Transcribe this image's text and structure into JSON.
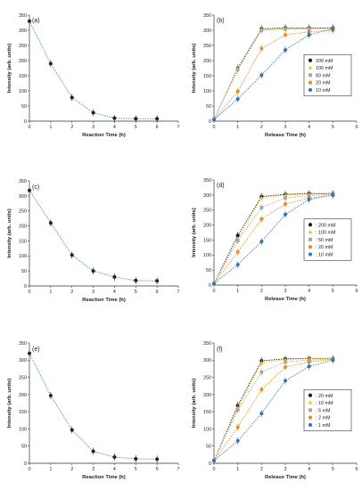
{
  "chart_data": [
    {
      "panel": "(a)",
      "type": "scatter",
      "style": "dotted-line",
      "xlabel": "Reaction Time (h)",
      "ylabel": "Intensity (arb. units)",
      "xlim": [
        0,
        7
      ],
      "ylim": [
        0,
        350
      ],
      "xticks": [
        "0",
        "1",
        "2",
        "3",
        "4",
        "5",
        "6",
        "7"
      ],
      "yticks": [
        "0",
        "50",
        "100",
        "150",
        "200",
        "250",
        "300",
        "350"
      ],
      "legend": null,
      "series": [
        {
          "color": "#3d84c6",
          "marker_color": "#222222",
          "x": [
            0,
            1,
            2,
            3,
            4,
            5,
            6
          ],
          "y": [
            330,
            190,
            78,
            28,
            10,
            8,
            8
          ]
        }
      ]
    },
    {
      "panel": "(b)",
      "type": "scatter",
      "style": "dotted-line",
      "xlabel": "Release Time (h)",
      "ylabel": "Intensity (arb. units)",
      "xlim": [
        0,
        6
      ],
      "ylim": [
        0,
        350
      ],
      "xticks": [
        "0",
        "1",
        "2",
        "3",
        "4",
        "5",
        "6"
      ],
      "yticks": [
        "0",
        "50",
        "100",
        "150",
        "200",
        "250",
        "300",
        "350"
      ],
      "legend": "right-middle",
      "series": [
        {
          "name": "200 mM",
          "color": "#1a1a1a",
          "marker": "circle",
          "x": [
            0,
            1,
            2,
            3,
            4,
            5
          ],
          "y": [
            5,
            175,
            305,
            308,
            308,
            308
          ]
        },
        {
          "name": "100 mM",
          "color": "#f2c200",
          "marker": "triangle",
          "x": [
            0,
            1,
            2,
            3,
            4,
            5
          ],
          "y": [
            5,
            168,
            302,
            305,
            306,
            307
          ]
        },
        {
          "name": "50 mM",
          "color": "#a6a6a6",
          "marker": "square",
          "x": [
            0,
            1,
            2,
            3,
            4,
            5
          ],
          "y": [
            5,
            172,
            300,
            304,
            305,
            306
          ]
        },
        {
          "name": "20 mM",
          "color": "#f08a24",
          "marker": "circle",
          "x": [
            0,
            1,
            2,
            3,
            4,
            5
          ],
          "y": [
            5,
            98,
            240,
            285,
            295,
            300
          ]
        },
        {
          "name": "10 mM",
          "color": "#2e75b6",
          "marker": "circle",
          "x": [
            0,
            1,
            2,
            3,
            4,
            5
          ],
          "y": [
            5,
            73,
            152,
            235,
            285,
            305
          ]
        }
      ]
    },
    {
      "panel": "(c)",
      "type": "scatter",
      "style": "dotted-line",
      "xlabel": "Reaction Time (h)",
      "ylabel": "Intensity (arb. units)",
      "xlim": [
        0,
        7
      ],
      "ylim": [
        0,
        350
      ],
      "xticks": [
        "0",
        "1",
        "2",
        "3",
        "4",
        "5",
        "6",
        "7"
      ],
      "yticks": [
        "0",
        "50",
        "100",
        "150",
        "200",
        "250",
        "300",
        "350"
      ],
      "legend": null,
      "series": [
        {
          "color": "#3d84c6",
          "marker_color": "#222222",
          "x": [
            0,
            1,
            2,
            3,
            4,
            5,
            6
          ],
          "y": [
            318,
            210,
            103,
            50,
            30,
            18,
            17
          ]
        }
      ]
    },
    {
      "panel": "(d)",
      "type": "scatter",
      "style": "dotted-line",
      "xlabel": "Release Time (h)",
      "ylabel": "Intensity (arb. units)",
      "xlim": [
        0,
        6
      ],
      "ylim": [
        0,
        350
      ],
      "xticks": [
        "0",
        "1",
        "2",
        "3",
        "4",
        "5",
        "6"
      ],
      "yticks": [
        "0",
        "50",
        "100",
        "150",
        "200",
        "250",
        "300",
        "350"
      ],
      "legend": "right-middle",
      "series": [
        {
          "name": ": 200 mM",
          "color": "#1a1a1a",
          "marker": "circle",
          "x": [
            0,
            1,
            2,
            3,
            4,
            5
          ],
          "y": [
            5,
            165,
            295,
            302,
            305,
            305
          ]
        },
        {
          "name": ": 100 mM",
          "color": "#f2c200",
          "marker": "triangle",
          "x": [
            0,
            1,
            2,
            3,
            4,
            5
          ],
          "y": [
            5,
            150,
            290,
            300,
            303,
            305
          ]
        },
        {
          "name": ": 50 mM",
          "color": "#a6a6a6",
          "marker": "square",
          "x": [
            0,
            1,
            2,
            3,
            4,
            5
          ],
          "y": [
            5,
            148,
            258,
            290,
            298,
            303
          ]
        },
        {
          "name": ": 20 mM",
          "color": "#f08a24",
          "marker": "circle",
          "x": [
            0,
            1,
            2,
            3,
            4,
            5
          ],
          "y": [
            5,
            110,
            220,
            270,
            290,
            300
          ]
        },
        {
          "name": ": 10 mM",
          "color": "#2e75b6",
          "marker": "circle",
          "x": [
            0,
            1,
            2,
            3,
            4,
            5
          ],
          "y": [
            5,
            68,
            145,
            235,
            285,
            300
          ]
        }
      ]
    },
    {
      "panel": "(e)",
      "type": "scatter",
      "style": "dotted-line",
      "xlabel": "Reaction Time (h)",
      "ylabel": "Intensity (arb. units)",
      "xlim": [
        0,
        7
      ],
      "ylim": [
        0,
        350
      ],
      "xticks": [
        "0",
        "1",
        "2",
        "3",
        "4",
        "5",
        "6",
        "7"
      ],
      "yticks": [
        "0",
        "50",
        "100",
        "150",
        "200",
        "250",
        "300",
        "350"
      ],
      "legend": null,
      "series": [
        {
          "color": "#3d84c6",
          "marker_color": "#222222",
          "x": [
            0,
            1,
            2,
            3,
            4,
            5,
            6
          ],
          "y": [
            320,
            197,
            97,
            35,
            18,
            13,
            12
          ]
        }
      ]
    },
    {
      "panel": "(f)",
      "type": "scatter",
      "style": "dotted-line",
      "xlabel": "Release Time (h)",
      "ylabel": "Intensity (arb. units)",
      "xlim": [
        0,
        6
      ],
      "ylim": [
        0,
        350
      ],
      "xticks": [
        "0",
        "1",
        "2",
        "3",
        "4",
        "5",
        "6"
      ],
      "yticks": [
        "0",
        "50",
        "100",
        "150",
        "200",
        "250",
        "300",
        "350"
      ],
      "legend": "right-middle",
      "series": [
        {
          "name": ": 20 mM",
          "color": "#1a1a1a",
          "marker": "circle",
          "x": [
            0,
            1,
            2,
            3,
            4,
            5
          ],
          "y": [
            8,
            168,
            298,
            304,
            305,
            305
          ]
        },
        {
          "name": ": 10 mM",
          "color": "#f2c200",
          "marker": "triangle",
          "x": [
            0,
            1,
            2,
            3,
            4,
            5
          ],
          "y": [
            8,
            160,
            292,
            302,
            304,
            305
          ]
        },
        {
          "name": ": 5 mM",
          "color": "#a6a6a6",
          "marker": "square",
          "x": [
            0,
            1,
            2,
            3,
            4,
            5
          ],
          "y": [
            8,
            155,
            265,
            295,
            300,
            303
          ]
        },
        {
          "name": ": 2 mM",
          "color": "#f08a24",
          "marker": "circle",
          "x": [
            0,
            1,
            2,
            3,
            4,
            5
          ],
          "y": [
            8,
            105,
            215,
            280,
            295,
            302
          ]
        },
        {
          "name": ": 1 mM",
          "color": "#2e75b6",
          "marker": "circle",
          "x": [
            0,
            1,
            2,
            3,
            4,
            5
          ],
          "y": [
            8,
            65,
            145,
            240,
            282,
            300
          ]
        }
      ]
    }
  ]
}
